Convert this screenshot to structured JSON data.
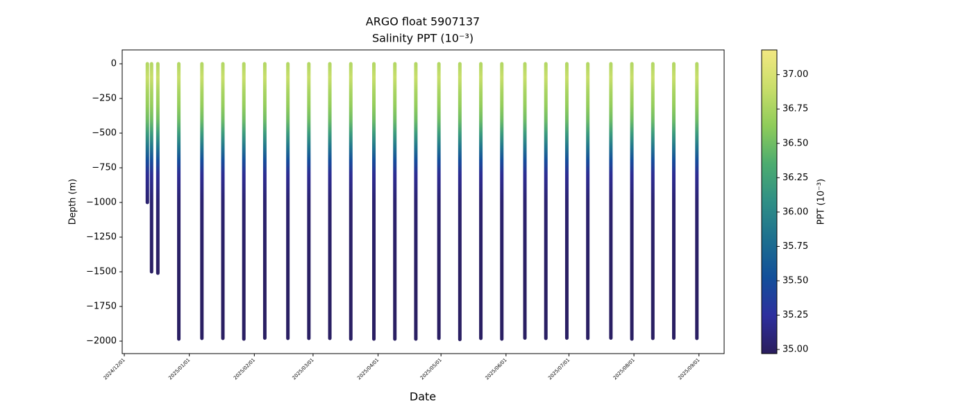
{
  "chart_data": {
    "type": "profile",
    "title": "ARGO float 5907137",
    "subtitle": "Salinity PPT (10⁻³)",
    "x_label": "Date",
    "y_label": "Depth (m)",
    "colorbar_label": "PPT (10⁻³)",
    "x": [
      "2024-12-12",
      "2024-12-14",
      "2024-12-17",
      "2024-12-27",
      "2025-01-07",
      "2025-01-17",
      "2025-01-27",
      "2025-02-06",
      "2025-02-17",
      "2025-02-27",
      "2025-03-09",
      "2025-03-19",
      "2025-03-30",
      "2025-04-09",
      "2025-04-19",
      "2025-04-30",
      "2025-05-10",
      "2025-05-20",
      "2025-05-30",
      "2025-06-10",
      "2025-06-20",
      "2025-06-30",
      "2025-07-10",
      "2025-07-21",
      "2025-07-31",
      "2025-08-10",
      "2025-08-20",
      "2025-08-31"
    ],
    "values": [
      -1000,
      -1500,
      -1510,
      -1985,
      -1980,
      -1980,
      -1985,
      -1978,
      -1980,
      -1980,
      -1980,
      -1985,
      -1985,
      -1985,
      -1985,
      -1980,
      -1988,
      -1980,
      -1985,
      -1978,
      -1980,
      -1978,
      -1980,
      -1978,
      -1985,
      -1980,
      -1978,
      -1980
    ],
    "salinity_profile": {
      "depth": [
        0,
        -100,
        -200,
        -300,
        -400,
        -500,
        -600,
        -700,
        -800,
        -1000,
        -1500,
        -2000
      ],
      "salinity": [
        36.8,
        36.9,
        36.75,
        36.65,
        36.5,
        36.2,
        35.85,
        35.5,
        35.2,
        35.05,
        35.0,
        35.0
      ]
    },
    "colormap": [
      "#2a1d5c",
      "#2d2f9e",
      "#124f9a",
      "#1d6f8f",
      "#2f8f86",
      "#4cac6f",
      "#8fcc5a",
      "#c9de6a",
      "#f3e882"
    ],
    "clim": [
      34.97,
      37.18
    ],
    "xlim": [
      "2024-11-30",
      "2025-09-13"
    ],
    "xticks": [
      {
        "value": "2024-12-01",
        "label": "2024/12/01"
      },
      {
        "value": "2025-01-01",
        "label": "2025/01/01"
      },
      {
        "value": "2025-02-01",
        "label": "2025/02/01"
      },
      {
        "value": "2025-03-01",
        "label": "2025/03/01"
      },
      {
        "value": "2025-04-01",
        "label": "2025/04/01"
      },
      {
        "value": "2025-05-01",
        "label": "2025/05/01"
      },
      {
        "value": "2025-06-01",
        "label": "2025/06/01"
      },
      {
        "value": "2025-07-01",
        "label": "2025/07/01"
      },
      {
        "value": "2025-08-01",
        "label": "2025/08/01"
      },
      {
        "value": "2025-09-01",
        "label": "2025/09/01"
      }
    ],
    "ylim": [
      -2090,
      100
    ],
    "yticks": [
      0,
      {
        "value": -250,
        "label": "−250"
      },
      {
        "value": -500,
        "label": "−500"
      },
      {
        "value": -750,
        "label": "−750"
      },
      {
        "value": -1000,
        "label": "−1000"
      },
      {
        "value": -1250,
        "label": "−1250"
      },
      {
        "value": -1500,
        "label": "−1500"
      },
      {
        "value": -1750,
        "label": "−1750"
      },
      {
        "value": -2000,
        "label": "−2000"
      }
    ],
    "colorbar_ticks": [
      {
        "value": 35.0,
        "label": "35.00"
      },
      {
        "value": 35.25,
        "label": "35.25"
      },
      {
        "value": 35.5,
        "label": "35.50"
      },
      {
        "value": 35.75,
        "label": "35.75"
      },
      {
        "value": 36.0,
        "label": "36.00"
      },
      {
        "value": 36.25,
        "label": "36.25"
      },
      {
        "value": 36.5,
        "label": "36.50"
      },
      {
        "value": 36.75,
        "label": "36.75"
      },
      {
        "value": 37.0,
        "label": "37.00"
      }
    ]
  }
}
